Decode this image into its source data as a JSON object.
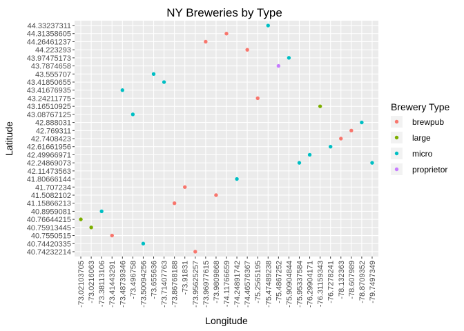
{
  "chart_data": {
    "type": "scatter",
    "title": "NY Breweries by Type",
    "xlabel": "Longitude",
    "ylabel": "Latitude",
    "grid": true,
    "legend_placement": "right",
    "x_categories": [
      "-73.02103705",
      "-73.0216063",
      "-73.38113106",
      "-73.41443291",
      "-73.48739346",
      "-73.496758",
      "-73.50094256",
      "-73.655636",
      "-73.71407763",
      "-73.86768188",
      "-73.91831",
      "-73.95625257",
      "-73.96977615",
      "-73.9809868",
      "-74.11766659",
      "-74.24891742",
      "-74.46576367",
      "-75.2565195",
      "-75.47489238",
      "-75.4867252",
      "-75.90904844",
      "-75.95337584",
      "-76.29904171",
      "-76.31159343",
      "-76.7278241",
      "-78.132363",
      "-78.607989",
      "-78.8709352",
      "-79.7497349"
    ],
    "y_categories": [
      "40.74232214",
      "40.74420335",
      "40.7550515",
      "40.75913445",
      "40.76644215",
      "40.8959081",
      "41.15866213",
      "41.5082102",
      "41.707234",
      "41.80666144",
      "42.11473563",
      "42.24869073",
      "42.49966971",
      "42.61661956",
      "42.7408423",
      "42.769311",
      "42.888031",
      "43.08767125",
      "43.16510925",
      "43.24211775",
      "43.41676935",
      "43.41850655",
      "43.555707",
      "43.7874658",
      "43.97475173",
      "44.223293",
      "44.26461237",
      "44.31358605",
      "44.33237311"
    ],
    "legend_title": "Brewery Type",
    "series": [
      {
        "name": "brewpub",
        "color": "#F8766D",
        "points": [
          {
            "x": "-73.41443291",
            "y": "40.7550515"
          },
          {
            "x": "-73.86768188",
            "y": "41.15866213"
          },
          {
            "x": "-73.91831",
            "y": "41.707234"
          },
          {
            "x": "-73.95625257",
            "y": "40.74232214"
          },
          {
            "x": "-73.96977615",
            "y": "44.26461237"
          },
          {
            "x": "-73.9809868",
            "y": "41.5082102"
          },
          {
            "x": "-74.11766659",
            "y": "44.31358605"
          },
          {
            "x": "-74.46576367",
            "y": "44.223293"
          },
          {
            "x": "-75.2565195",
            "y": "43.24211775"
          },
          {
            "x": "-78.132363",
            "y": "42.7408423"
          },
          {
            "x": "-78.607989",
            "y": "42.769311"
          }
        ]
      },
      {
        "name": "large",
        "color": "#7CAE00",
        "points": [
          {
            "x": "-73.02103705",
            "y": "40.76644215"
          },
          {
            "x": "-73.0216063",
            "y": "40.75913445"
          },
          {
            "x": "-76.31159343",
            "y": "43.16510925"
          }
        ]
      },
      {
        "name": "micro",
        "color": "#00BFC4",
        "points": [
          {
            "x": "-73.38113106",
            "y": "40.8959081"
          },
          {
            "x": "-73.48739346",
            "y": "43.41676935"
          },
          {
            "x": "-73.496758",
            "y": "43.08767125"
          },
          {
            "x": "-73.50094256",
            "y": "40.74420335"
          },
          {
            "x": "-73.655636",
            "y": "43.555707"
          },
          {
            "x": "-73.71407763",
            "y": "43.41850655"
          },
          {
            "x": "-74.24891742",
            "y": "41.80666144"
          },
          {
            "x": "-75.47489238",
            "y": "44.33237311"
          },
          {
            "x": "-75.90904844",
            "y": "43.97475173"
          },
          {
            "x": "-75.95337584",
            "y": "42.24869073"
          },
          {
            "x": "-76.29904171",
            "y": "42.49966971"
          },
          {
            "x": "-76.7278241",
            "y": "42.61661956"
          },
          {
            "x": "-78.8709352",
            "y": "42.888031"
          },
          {
            "x": "-79.7497349",
            "y": "42.24869073"
          }
        ]
      },
      {
        "name": "proprietor",
        "color": "#C77CFF",
        "points": [
          {
            "x": "-75.4867252",
            "y": "43.7874658"
          }
        ]
      }
    ]
  }
}
